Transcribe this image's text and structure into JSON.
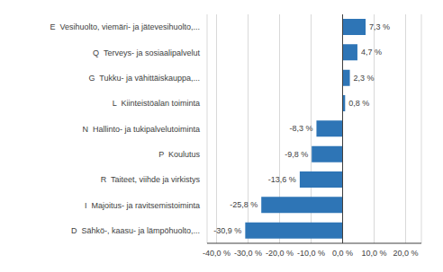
{
  "chart_data": {
    "type": "bar",
    "orientation": "horizontal",
    "categories": [
      "D  Sähkö-, kaasu- ja lämpöhuolto,...",
      "I  Majoitus- ja ravitsemistoiminta",
      "R  Taiteet, viihde ja virkistys",
      "P  Koulutus",
      "N  Hallinto- ja tukipalvelutoiminta",
      "L  Kiinteistöalan toiminta",
      "G  Tukku- ja vähittäiskauppa,...",
      "Q  Terveys- ja sosiaalipalvelut",
      "E  Vesihuolto, viemäri- ja jätevesihuolto,..."
    ],
    "values": [
      -30.9,
      -25.8,
      -13.6,
      -9.8,
      -8.3,
      0.8,
      2.3,
      4.7,
      7.3
    ],
    "value_labels": [
      "-30,9 %",
      "-25,8 %",
      "-13,6 %",
      "-9,8 %",
      "-8,3 %",
      "0,8 %",
      "2,3 %",
      "4,7 %",
      "7,3 %"
    ],
    "data_labels": true,
    "color": "#2E75B6",
    "xlim": [
      -43,
      25
    ],
    "xticks": [
      {
        "value": -40,
        "label": "-40,0 %"
      },
      {
        "value": -30,
        "label": "-30,0 %"
      },
      {
        "value": -20,
        "label": "-20,0 %"
      },
      {
        "value": -10,
        "label": "-10,0 %"
      },
      {
        "value": 0,
        "label": "0,0 %"
      },
      {
        "value": 10,
        "label": "10,0 %"
      },
      {
        "value": 20,
        "label": "20,0 %"
      }
    ],
    "grid": true
  }
}
